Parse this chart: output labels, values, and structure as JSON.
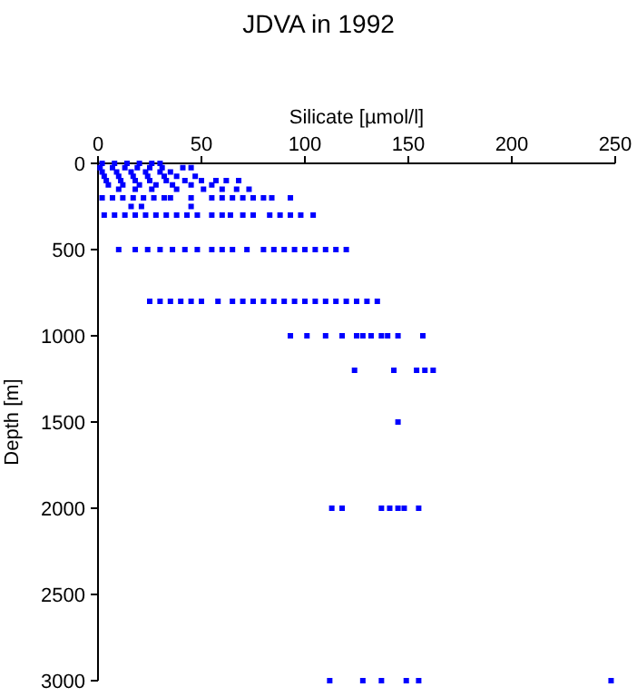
{
  "chart_data": {
    "type": "scatter",
    "title": "JDVA in 1992",
    "xlabel": "Silicate [µmol/l]",
    "ylabel": "Depth [m]",
    "xlim": [
      0,
      250
    ],
    "xticks": [
      0,
      50,
      100,
      150,
      200,
      250
    ],
    "ylim": [
      3000,
      0
    ],
    "yticks": [
      0,
      500,
      1000,
      1500,
      2000,
      2500,
      3000
    ],
    "grid": false,
    "marker": "square",
    "series": [
      {
        "color": "#0000ff",
        "x": [
          2,
          8,
          14,
          20,
          26,
          30,
          1,
          7,
          13,
          19,
          25,
          31,
          41,
          45,
          2,
          9,
          16,
          23,
          30,
          35,
          3,
          10,
          17,
          24,
          32,
          38,
          47,
          4,
          11,
          18,
          25,
          33,
          42,
          50,
          57,
          62,
          68,
          5,
          12,
          20,
          28,
          36,
          45,
          55,
          10,
          18,
          26,
          38,
          51,
          60,
          67,
          73,
          2,
          7,
          12,
          17,
          22,
          27,
          32,
          35,
          45,
          55,
          60,
          65,
          70,
          75,
          80,
          84,
          93,
          16,
          21,
          45,
          3,
          8,
          13,
          18,
          23,
          28,
          33,
          38,
          43,
          48,
          55,
          60,
          64,
          70,
          75,
          83,
          88,
          93,
          98,
          104,
          10,
          18,
          24,
          30,
          36,
          42,
          48,
          55,
          60,
          65,
          72,
          80,
          85,
          90,
          95,
          100,
          105,
          110,
          115,
          120,
          25,
          30,
          35,
          40,
          45,
          50,
          58,
          65,
          70,
          75,
          80,
          85,
          90,
          95,
          100,
          105,
          110,
          115,
          120,
          125,
          130,
          135,
          93,
          101,
          110,
          118,
          125,
          128,
          132,
          137,
          140,
          145,
          157,
          124,
          143,
          154,
          158,
          162,
          145,
          113,
          118,
          137,
          141,
          145,
          148,
          155,
          112,
          128,
          137,
          149,
          155,
          248
        ],
        "values": [
          0,
          0,
          0,
          0,
          0,
          0,
          25,
          25,
          25,
          25,
          25,
          25,
          25,
          25,
          50,
          50,
          50,
          50,
          50,
          50,
          75,
          75,
          75,
          75,
          75,
          75,
          75,
          100,
          100,
          100,
          100,
          100,
          100,
          100,
          100,
          100,
          100,
          125,
          125,
          125,
          125,
          125,
          125,
          125,
          150,
          150,
          150,
          150,
          150,
          150,
          150,
          150,
          200,
          200,
          200,
          200,
          200,
          200,
          200,
          200,
          200,
          200,
          200,
          200,
          200,
          200,
          200,
          200,
          200,
          250,
          250,
          250,
          300,
          300,
          300,
          300,
          300,
          300,
          300,
          300,
          300,
          300,
          300,
          300,
          300,
          300,
          300,
          300,
          300,
          300,
          300,
          300,
          500,
          500,
          500,
          500,
          500,
          500,
          500,
          500,
          500,
          500,
          500,
          500,
          500,
          500,
          500,
          500,
          500,
          500,
          500,
          500,
          800,
          800,
          800,
          800,
          800,
          800,
          800,
          800,
          800,
          800,
          800,
          800,
          800,
          800,
          800,
          800,
          800,
          800,
          800,
          800,
          800,
          800,
          1000,
          1000,
          1000,
          1000,
          1000,
          1000,
          1000,
          1000,
          1000,
          1000,
          1000,
          1200,
          1200,
          1200,
          1200,
          1200,
          1500,
          2000,
          2000,
          2000,
          2000,
          2000,
          2000,
          2000,
          3000,
          3000,
          3000,
          3000,
          3000,
          3000
        ]
      }
    ]
  }
}
